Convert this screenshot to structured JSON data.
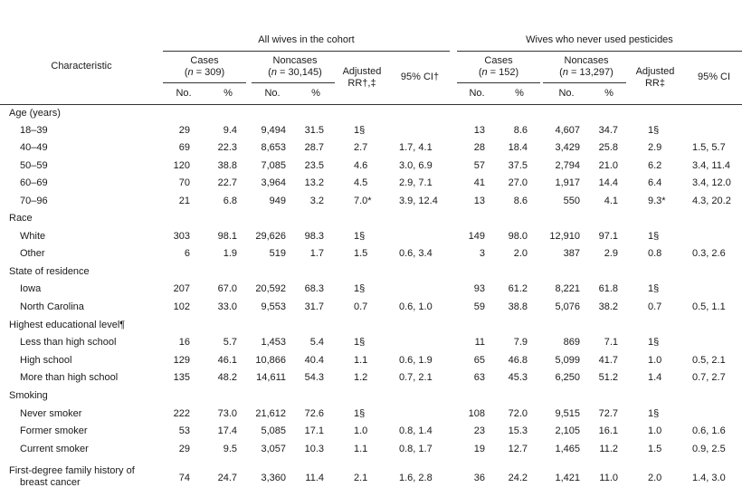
{
  "header": {
    "group_all": "All wives in the cohort",
    "group_never": "Wives who never used pesticides",
    "characteristic": "Characteristic",
    "cases_all_l1": "Cases",
    "cases_all_l2_pre": "(",
    "cases_all_n": "n",
    "cases_all_l2_post": " = 309)",
    "noncases_all_l1": "Noncases",
    "noncases_all_l2_pre": "(",
    "noncases_all_n": "n",
    "noncases_all_l2_post": " = 30,145)",
    "adj_all_l1": "Adjusted",
    "adj_all_l2": "RR†,‡",
    "ci_all": "95% CI†",
    "cases_nev_l1": "Cases",
    "cases_nev_l2_pre": "(",
    "cases_nev_n": "n",
    "cases_nev_l2_post": " = 152)",
    "noncases_nev_l1": "Noncases",
    "noncases_nev_l2_pre": "(",
    "noncases_nev_n": "n",
    "noncases_nev_l2_post": " = 13,297)",
    "adj_nev_l1": "Adjusted",
    "adj_nev_l2": "RR‡",
    "ci_nev": "95% CI",
    "no": "No.",
    "pct": "%"
  },
  "rows": [
    {
      "label": "Age (years)",
      "section": true
    },
    {
      "label": "18–39",
      "v": [
        "29",
        "9.4",
        "9,494",
        "31.5",
        "1§",
        "",
        "13",
        "8.6",
        "4,607",
        "34.7",
        "1§",
        ""
      ]
    },
    {
      "label": "40–49",
      "v": [
        "69",
        "22.3",
        "8,653",
        "28.7",
        "2.7",
        "1.7, 4.1",
        "28",
        "18.4",
        "3,429",
        "25.8",
        "2.9",
        "1.5, 5.7"
      ]
    },
    {
      "label": "50–59",
      "v": [
        "120",
        "38.8",
        "7,085",
        "23.5",
        "4.6",
        "3.0, 6.9",
        "57",
        "37.5",
        "2,794",
        "21.0",
        "6.2",
        "3.4, 11.4"
      ]
    },
    {
      "label": "60–69",
      "v": [
        "70",
        "22.7",
        "3,964",
        "13.2",
        "4.5",
        "2.9, 7.1",
        "41",
        "27.0",
        "1,917",
        "14.4",
        "6.4",
        "3.4, 12.0"
      ]
    },
    {
      "label": "70–96",
      "v": [
        "21",
        "6.8",
        "949",
        "3.2",
        "7.0*",
        "3.9, 12.4",
        "13",
        "8.6",
        "550",
        "4.1",
        "9.3*",
        "4.3, 20.2"
      ]
    },
    {
      "label": "Race",
      "section": true
    },
    {
      "label": "White",
      "v": [
        "303",
        "98.1",
        "29,626",
        "98.3",
        "1§",
        "",
        "149",
        "98.0",
        "12,910",
        "97.1",
        "1§",
        ""
      ]
    },
    {
      "label": "Other",
      "v": [
        "6",
        "1.9",
        "519",
        "1.7",
        "1.5",
        "0.6, 3.4",
        "3",
        "2.0",
        "387",
        "2.9",
        "0.8",
        "0.3, 2.6"
      ]
    },
    {
      "label": "State of residence",
      "section": true
    },
    {
      "label": "Iowa",
      "v": [
        "207",
        "67.0",
        "20,592",
        "68.3",
        "1§",
        "",
        "93",
        "61.2",
        "8,221",
        "61.8",
        "1§",
        ""
      ]
    },
    {
      "label": "North Carolina",
      "v": [
        "102",
        "33.0",
        "9,553",
        "31.7",
        "0.7",
        "0.6, 1.0",
        "59",
        "38.8",
        "5,076",
        "38.2",
        "0.7",
        "0.5, 1.1"
      ]
    },
    {
      "label": "Highest educational level¶",
      "section": true
    },
    {
      "label": "Less than high school",
      "v": [
        "16",
        "5.7",
        "1,453",
        "5.4",
        "1§",
        "",
        "11",
        "7.9",
        "869",
        "7.1",
        "1§",
        ""
      ]
    },
    {
      "label": "High school",
      "v": [
        "129",
        "46.1",
        "10,866",
        "40.4",
        "1.1",
        "0.6, 1.9",
        "65",
        "46.8",
        "5,099",
        "41.7",
        "1.0",
        "0.5, 2.1"
      ]
    },
    {
      "label": "More than high school",
      "v": [
        "135",
        "48.2",
        "14,611",
        "54.3",
        "1.2",
        "0.7, 2.1",
        "63",
        "45.3",
        "6,250",
        "51.2",
        "1.4",
        "0.7, 2.7"
      ]
    },
    {
      "label": "Smoking",
      "section": true
    },
    {
      "label": "Never smoker",
      "v": [
        "222",
        "73.0",
        "21,612",
        "72.6",
        "1§",
        "",
        "108",
        "72.0",
        "9,515",
        "72.7",
        "1§",
        ""
      ]
    },
    {
      "label": "Former smoker",
      "v": [
        "53",
        "17.4",
        "5,085",
        "17.1",
        "1.0",
        "0.8, 1.4",
        "23",
        "15.3",
        "2,105",
        "16.1",
        "1.0",
        "0.6, 1.6"
      ]
    },
    {
      "label": "Current smoker",
      "v": [
        "29",
        "9.5",
        "3,057",
        "10.3",
        "1.1",
        "0.8, 1.7",
        "19",
        "12.7",
        "1,465",
        "11.2",
        "1.5",
        "0.9, 2.5"
      ]
    },
    {
      "label": "First-degree family history of",
      "label2": "breast cancer",
      "v": [
        "74",
        "24.7",
        "3,360",
        "11.4",
        "2.1",
        "1.6, 2.8",
        "36",
        "24.2",
        "1,421",
        "11.0",
        "2.0",
        "1.4, 3.0"
      ]
    }
  ]
}
